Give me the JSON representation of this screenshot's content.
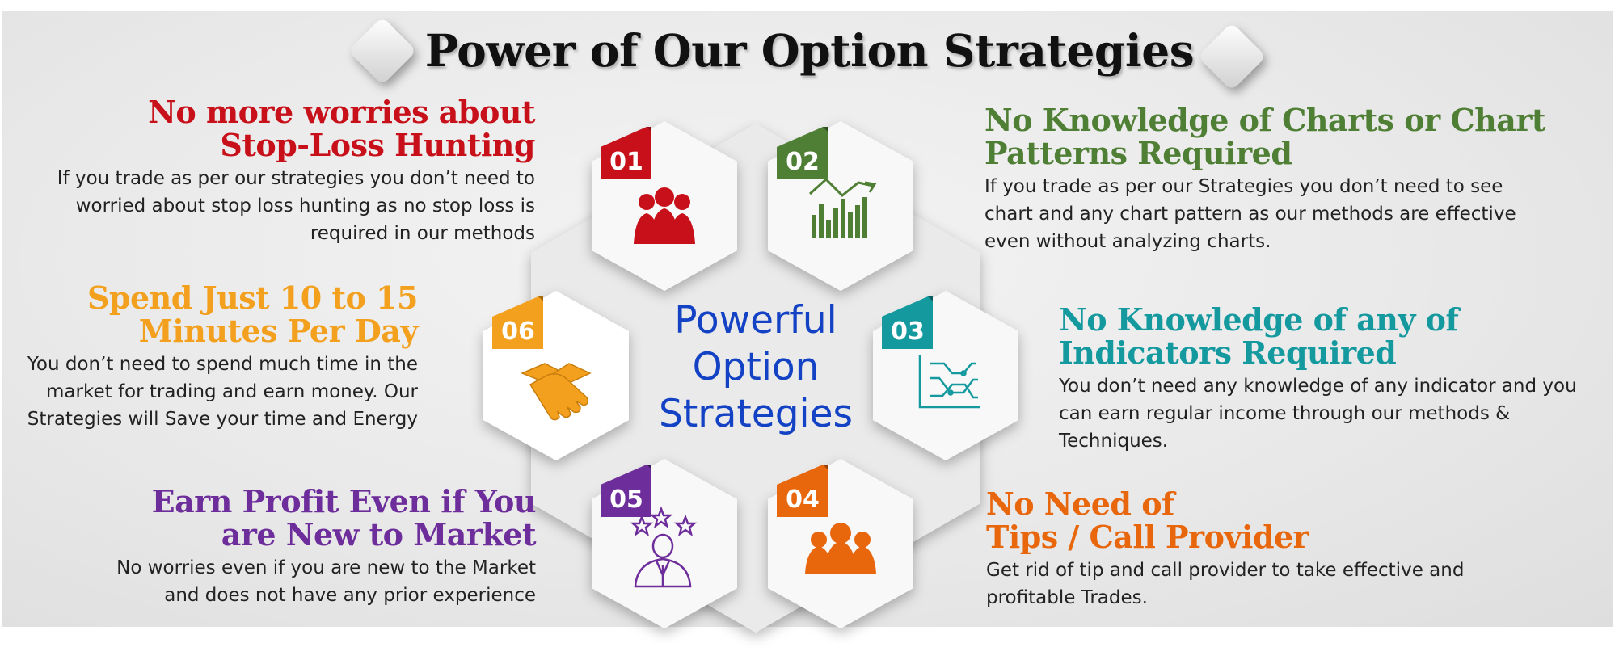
{
  "title": "Power of Our Option Strategies",
  "center_label": [
    "Powerful",
    "Option",
    "Strategies"
  ],
  "colors": {
    "red": "#c8101a",
    "green": "#4f7f34",
    "teal": "#14999f",
    "orange": "#e8660c",
    "purple": "#6d2d9b",
    "amber": "#f2a01e",
    "blue": "#1442c4"
  },
  "features": [
    {
      "number": "01",
      "icon": "team-icon",
      "heading": [
        "No more worries about",
        "Stop-Loss Hunting"
      ],
      "body": [
        "If you trade as per our strategies you don’t need to",
        "worried about stop loss hunting as no stop loss is",
        "required in our methods"
      ]
    },
    {
      "number": "02",
      "icon": "bar-chart-trend-icon",
      "heading": [
        "No Knowledge of Charts or Chart",
        "Patterns Required"
      ],
      "body": [
        "If you trade as per our Strategies you don’t need to see",
        "chart and any chart pattern as our methods are effective",
        "even without analyzing charts."
      ]
    },
    {
      "number": "03",
      "icon": "indicator-graph-icon",
      "heading": [
        "No Knowledge of any of",
        "Indicators Required"
      ],
      "body": [
        "You don’t need any knowledge of any indicator and you",
        "can earn regular income through our methods &",
        "Techniques."
      ]
    },
    {
      "number": "04",
      "icon": "group-icon",
      "heading": [
        "No Need of",
        "Tips / Call Provider"
      ],
      "body": [
        "Get rid of tip and call provider to take effective and",
        "profitable Trades."
      ]
    },
    {
      "number": "05",
      "icon": "businessman-stars-icon",
      "heading": [
        "Earn Profit Even if You",
        "are New to Market"
      ],
      "body": [
        "No worries even if you are new to the Market",
        "and does not have any prior experience"
      ]
    },
    {
      "number": "06",
      "icon": "handshake-icon",
      "heading": [
        "Spend Just 10 to 15",
        "Minutes Per Day"
      ],
      "body": [
        "You don’t need to spend much time in the",
        "market for trading and earn money.  Our",
        "Strategies will Save your time and Energy"
      ]
    }
  ]
}
